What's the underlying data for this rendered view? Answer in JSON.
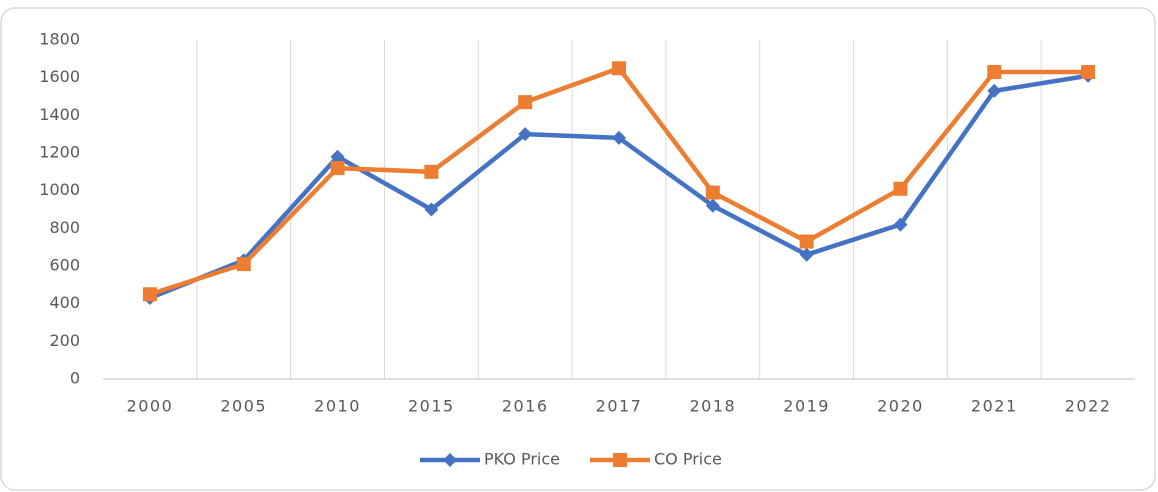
{
  "chart_data": {
    "type": "line",
    "categories": [
      "2000",
      "2005",
      "2010",
      "2015",
      "2016",
      "2017",
      "2018",
      "2019",
      "2020",
      "2021",
      "2022"
    ],
    "series": [
      {
        "name": "PKO Price",
        "color": "#4472c4",
        "marker": "diamond",
        "values": [
          430,
          630,
          1180,
          900,
          1300,
          1280,
          920,
          660,
          820,
          1530,
          1610
        ]
      },
      {
        "name": "CO Price",
        "color": "#ed7d31",
        "marker": "square",
        "values": [
          450,
          610,
          1120,
          1100,
          1470,
          1650,
          990,
          730,
          1010,
          1630,
          1630
        ]
      }
    ],
    "ylim": [
      0,
      1800
    ],
    "yticks": [
      0,
      200,
      400,
      600,
      800,
      1000,
      1200,
      1400,
      1600,
      1800
    ],
    "legend": "bottom"
  }
}
